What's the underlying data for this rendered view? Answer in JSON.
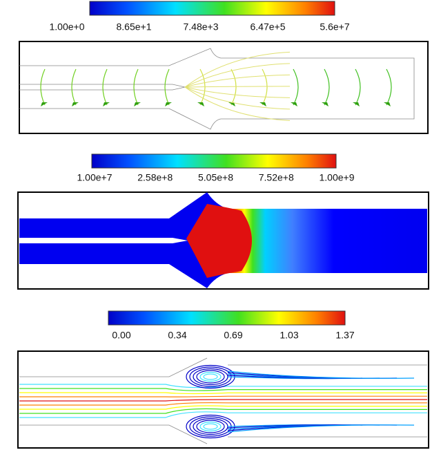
{
  "panels": [
    {
      "colorbar_ticks": [
        "1.00e+0",
        "8.65e+1",
        "7.48e+3",
        "6.47e+5",
        "5.6e+7"
      ]
    },
    {
      "colorbar_ticks": [
        "1.00e+7",
        "2.58e+8",
        "5.05e+8",
        "7.52e+8",
        "1.00e+9"
      ]
    },
    {
      "colorbar_ticks": [
        "0.00",
        "0.34",
        "0.69",
        "1.03",
        "1.37"
      ]
    }
  ]
}
